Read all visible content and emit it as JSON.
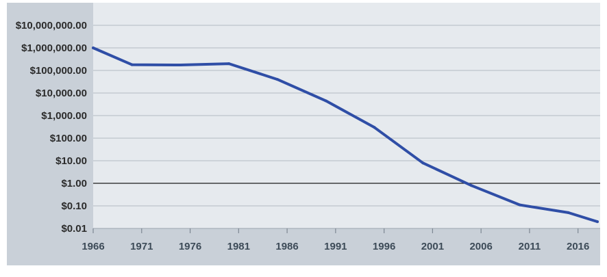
{
  "colors": {
    "background_outer": "#c9d0d8",
    "plot_background": "#e6eaee",
    "gridline": "#b2bac3",
    "baseline": "#1a1a1a",
    "line": "#2f4ea6",
    "x_tick_text": "#3d4b58",
    "y_tick_text": "#2b2b2b"
  },
  "chart_data": {
    "type": "line",
    "title": "",
    "xlabel": "",
    "ylabel": "",
    "yscale": "log",
    "grid": true,
    "legend": "none",
    "xlim": [
      1966,
      2018
    ],
    "ylim": [
      0.01,
      10000000
    ],
    "x_ticks": [
      1966,
      1971,
      1976,
      1981,
      1986,
      1991,
      1996,
      2001,
      2006,
      2011,
      2016
    ],
    "x_tick_labels": [
      "1966",
      "1971",
      "1976",
      "1981",
      "1986",
      "1991",
      "1996",
      "2001",
      "2006",
      "2011",
      "2016"
    ],
    "y_ticks": [
      0.01,
      0.1,
      1,
      10,
      100,
      1000,
      10000,
      100000,
      1000000,
      10000000
    ],
    "y_tick_labels": [
      "$0.01",
      "$0.10",
      "$1.00",
      "$10.00",
      "$100.00",
      "$1,000.00",
      "$10,000.00",
      "$100,000.00",
      "$1,000,000.00",
      "$10,000,000.00"
    ],
    "reference_line": 1,
    "series": [
      {
        "x": [
          1966,
          1970,
          1975,
          1980,
          1985,
          1990,
          1995,
          2000,
          2005,
          2010,
          2015,
          2018
        ],
        "values": [
          1000000,
          180000,
          175000,
          200000,
          40000,
          4500,
          300,
          8,
          0.8,
          0.11,
          0.05,
          0.02
        ]
      }
    ]
  }
}
